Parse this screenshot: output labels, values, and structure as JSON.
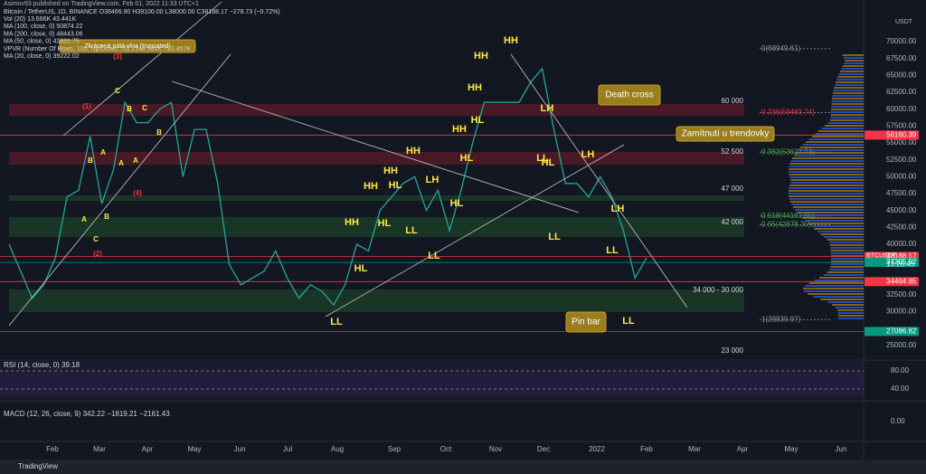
{
  "header": [
    "Bitcoin / TetherUS, 1D, BINANCE  O38466.90  H39100.00  L38000.00  C38188.17  −278.73 (−0.72%)",
    "Vol (20)  13.666K  43.441K",
    "MA (100, close, 0)  50874.22",
    "MA (200, close, 0)  48443.06",
    "MA (50, close, 0)  43631.75",
    "VPVR (Number Of Rows, 100, Up/Down, 70)  2148.981K  733.457K",
    "MA (20, close, 0)  39222.02"
  ],
  "author": "Asimov93 published on TradingView.com, Feb 01, 2022 11:33 UTC+1",
  "currency": "USDT",
  "price": {
    "values": [
      40000,
      36000,
      32000,
      34000,
      38000,
      47000,
      48000,
      56000,
      46000,
      51000,
      61000,
      58000,
      58000,
      60000,
      61000,
      50000,
      57000,
      57000,
      49000,
      37000,
      34000,
      35000,
      36000,
      39000,
      35000,
      32000,
      34000,
      33000,
      31000,
      34000,
      40000,
      39000,
      45000,
      47000,
      49000,
      50000,
      45000,
      48000,
      42000,
      48000,
      55000,
      61000,
      61000,
      61000,
      61000,
      64000,
      66000,
      57000,
      49000,
      49000,
      47000,
      50000,
      47000,
      42000,
      35000,
      38000
    ]
  },
  "price_axis": {
    "ticks": [
      {
        "value": 70000,
        "label": "70000.00"
      },
      {
        "value": 67500,
        "label": "67500.00"
      },
      {
        "value": 65000,
        "label": "65000.00"
      },
      {
        "value": 62500,
        "label": "62500.00"
      },
      {
        "value": 60000,
        "label": "60000.00"
      },
      {
        "value": 57500,
        "label": "57500.00"
      },
      {
        "value": 55000,
        "label": "55000.00"
      },
      {
        "value": 52500,
        "label": "52500.00"
      },
      {
        "value": 50000,
        "label": "50000.00"
      },
      {
        "value": 47500,
        "label": "47500.00"
      },
      {
        "value": 45000,
        "label": "45000.00"
      },
      {
        "value": 42500,
        "label": "42500.00"
      },
      {
        "value": 40000,
        "label": "40000.00"
      },
      {
        "value": 32500,
        "label": "32500.00"
      },
      {
        "value": 30000,
        "label": "30000.00"
      },
      {
        "value": 25000,
        "label": "25000.00"
      }
    ]
  },
  "price_tags": [
    {
      "value": 38188.17,
      "label": "38188.17"
    },
    {
      "value": 56160.39,
      "label": "56160.39"
    },
    {
      "value": 37305.52,
      "label": "37305.52"
    },
    {
      "value": 34464.85,
      "label": "34464.85"
    },
    {
      "value": 27086.82,
      "label": "27086.82"
    }
  ],
  "countdown": "13:26:45",
  "symbol": "BTCUSDT",
  "levels": [
    {
      "value": 60000,
      "label": "60 000"
    },
    {
      "value": 52500,
      "label": "52 500"
    },
    {
      "value": 47000,
      "label": "47 000"
    },
    {
      "value": 42000,
      "label": "42 000"
    },
    {
      "value": 32000,
      "label": "34 000 - 30 000"
    },
    {
      "value": 23000,
      "label": "23 000"
    }
  ],
  "fib": [
    {
      "value": 68949.61,
      "label": "0(68949.61)"
    },
    {
      "value": 59483.74,
      "label": "0.236(59483.74)"
    },
    {
      "value": 53627.73,
      "label": "0.382(53627.73)"
    },
    {
      "value": 44161.86,
      "label": "0.618(44161.86)"
    },
    {
      "value": 42878.35,
      "label": "0.65(42878.35)"
    },
    {
      "value": 28839.97,
      "label": "1(28839.97)"
    }
  ],
  "wave_labels": [
    "(3)",
    "(1)",
    "C",
    "B",
    "A",
    "B",
    "A",
    "B",
    "A",
    "C",
    "(4)",
    "A",
    "B",
    "C",
    "(2)",
    "HH",
    "HH",
    "HH",
    "HH",
    "HH",
    "HH",
    "HH",
    "HH",
    "HL",
    "HL",
    "HL",
    "LL",
    "LH",
    "HL",
    "HL",
    "HL",
    "LL",
    "HL",
    "LL",
    "LH",
    "LH",
    "LH",
    "LL",
    "LL",
    "LL",
    "LL"
  ],
  "annotations": [
    "Zkrácená pátá vlna (truncated)",
    "Death cross",
    "Zamítnutí u trendovky",
    "Pin bar"
  ],
  "rsi": {
    "title": "RSI (14, close, 0)  39.18",
    "ticks": [
      {
        "value": 80,
        "label": "80.00"
      },
      {
        "value": 40,
        "label": "40.00"
      }
    ]
  },
  "macd": {
    "title": "MACD (12, 26, close, 9)  342.22  −1819.21  −2161.43",
    "ticks": [
      {
        "value": 0,
        "label": "0.00"
      }
    ]
  },
  "months": [
    "Feb",
    "Mar",
    "Apr",
    "May",
    "Jun",
    "Jul",
    "Aug",
    "Sep",
    "Oct",
    "Nov",
    "Dec",
    "2022",
    "Feb",
    "Mar",
    "Apr",
    "May",
    "Jun"
  ],
  "brand": "TradingView"
}
